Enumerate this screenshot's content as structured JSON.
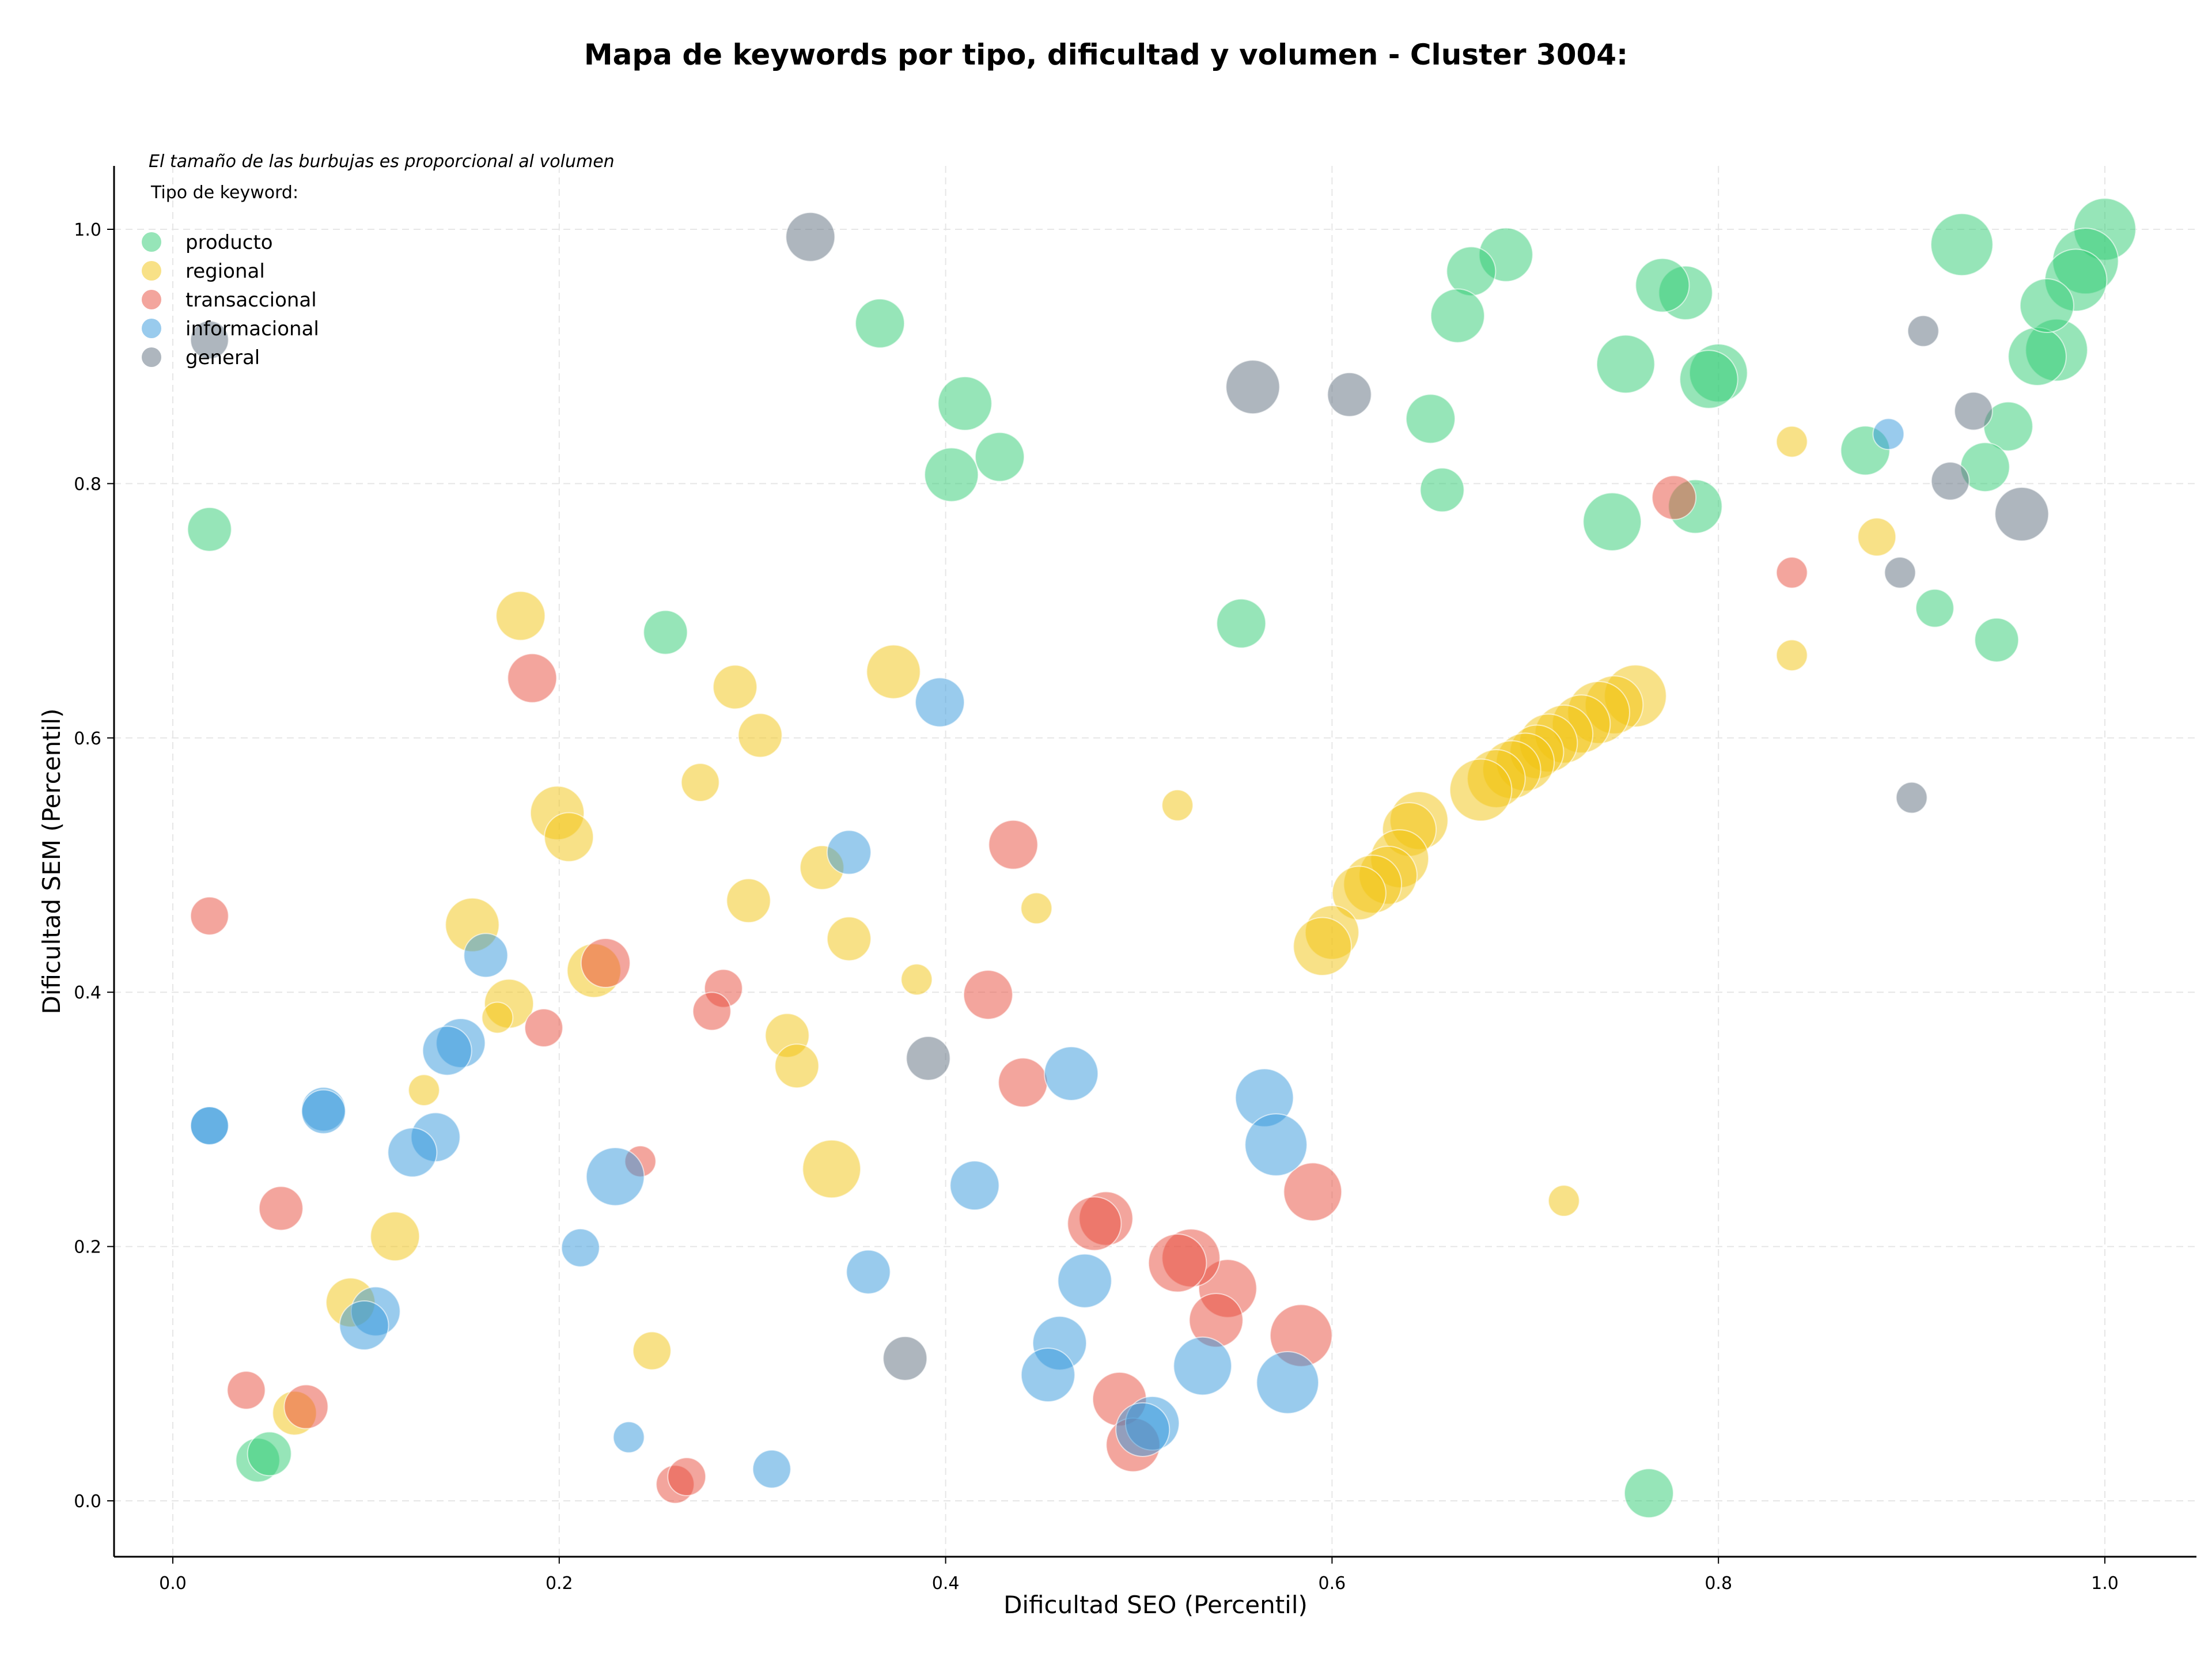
{
  "chart_data": {
    "type": "scatter",
    "title": "Mapa de keywords por tipo, dificultad y volumen - Cluster 3004:",
    "xlabel": "Dificultad SEO (Percentil)",
    "ylabel": "Dificultad SEM (Percentil)",
    "xlim": [
      -0.03,
      1.048
    ],
    "ylim": [
      -0.043,
      1.05
    ],
    "xticks": [
      "0.0",
      "0.2",
      "0.4",
      "0.6",
      "0.8",
      "1.0"
    ],
    "yticks": [
      "0.0",
      "0.2",
      "0.4",
      "0.6",
      "0.8",
      "1.0"
    ],
    "grid": true,
    "annotation": "El tamaño de las burbujas es proporcional al volumen",
    "legend": {
      "title": "Tipo de keyword:",
      "position": "top-left"
    },
    "series": [
      {
        "name": "producto",
        "color": "#2ecc71",
        "points": [
          [
            1.0,
            1.0,
            8
          ],
          [
            0.99,
            0.975,
            9
          ],
          [
            0.985,
            0.96,
            8
          ],
          [
            0.975,
            0.905,
            8
          ],
          [
            0.965,
            0.9,
            7
          ],
          [
            0.97,
            0.94,
            6
          ],
          [
            0.95,
            0.845,
            5
          ],
          [
            0.938,
            0.813,
            5
          ],
          [
            0.926,
            0.988,
            8
          ],
          [
            0.876,
            0.826,
            5
          ],
          [
            0.912,
            0.702,
            3
          ],
          [
            0.944,
            0.677,
            4
          ],
          [
            0.8,
            0.887,
            7
          ],
          [
            0.795,
            0.882,
            7
          ],
          [
            0.788,
            0.782,
            6
          ],
          [
            0.783,
            0.95,
            6
          ],
          [
            0.771,
            0.956,
            6
          ],
          [
            0.752,
            0.894,
            7
          ],
          [
            0.745,
            0.77,
            7
          ],
          [
            0.764,
            0.006,
            5
          ],
          [
            0.69,
            0.98,
            6
          ],
          [
            0.672,
            0.967,
            5
          ],
          [
            0.665,
            0.932,
            6
          ],
          [
            0.651,
            0.851,
            5
          ],
          [
            0.657,
            0.795,
            4
          ],
          [
            0.553,
            0.69,
            5
          ],
          [
            0.41,
            0.863,
            6
          ],
          [
            0.403,
            0.807,
            6
          ],
          [
            0.428,
            0.821,
            5
          ],
          [
            0.366,
            0.926,
            5
          ],
          [
            0.255,
            0.683,
            4
          ],
          [
            0.019,
            0.764,
            4
          ],
          [
            0.044,
            0.032,
            4
          ],
          [
            0.05,
            0.037,
            4
          ]
        ]
      },
      {
        "name": "regional",
        "color": "#f1c40f",
        "points": [
          [
            0.757,
            0.633,
            8
          ],
          [
            0.746,
            0.626,
            7
          ],
          [
            0.738,
            0.62,
            8
          ],
          [
            0.729,
            0.611,
            7
          ],
          [
            0.72,
            0.603,
            7
          ],
          [
            0.712,
            0.596,
            7
          ],
          [
            0.706,
            0.589,
            6
          ],
          [
            0.7,
            0.581,
            7
          ],
          [
            0.693,
            0.575,
            7
          ],
          [
            0.685,
            0.568,
            7
          ],
          [
            0.677,
            0.559,
            8
          ],
          [
            0.645,
            0.535,
            7
          ],
          [
            0.64,
            0.528,
            6
          ],
          [
            0.635,
            0.505,
            7
          ],
          [
            0.629,
            0.492,
            7
          ],
          [
            0.621,
            0.485,
            7
          ],
          [
            0.614,
            0.478,
            6
          ],
          [
            0.6,
            0.447,
            6
          ],
          [
            0.595,
            0.436,
            7
          ],
          [
            0.52,
            0.547,
            2
          ],
          [
            0.447,
            0.466,
            2
          ],
          [
            0.373,
            0.652,
            6
          ],
          [
            0.336,
            0.498,
            4
          ],
          [
            0.35,
            0.442,
            4
          ],
          [
            0.385,
            0.41,
            2
          ],
          [
            0.341,
            0.261,
            7
          ],
          [
            0.318,
            0.366,
            4
          ],
          [
            0.323,
            0.342,
            4
          ],
          [
            0.291,
            0.64,
            4
          ],
          [
            0.304,
            0.602,
            4
          ],
          [
            0.273,
            0.565,
            3
          ],
          [
            0.298,
            0.472,
            4
          ],
          [
            0.18,
            0.696,
            5
          ],
          [
            0.199,
            0.541,
            6
          ],
          [
            0.205,
            0.522,
            5
          ],
          [
            0.155,
            0.453,
            6
          ],
          [
            0.174,
            0.391,
            5
          ],
          [
            0.168,
            0.38,
            2
          ],
          [
            0.218,
            0.417,
            6
          ],
          [
            0.13,
            0.323,
            2
          ],
          [
            0.115,
            0.208,
            5
          ],
          [
            0.092,
            0.156,
            5
          ],
          [
            0.063,
            0.069,
            4
          ],
          [
            0.248,
            0.118,
            3
          ],
          [
            0.72,
            0.236,
            2
          ],
          [
            0.838,
            0.833,
            2
          ],
          [
            0.882,
            0.758,
            3
          ],
          [
            0.838,
            0.665,
            2
          ]
        ]
      },
      {
        "name": "transaccional",
        "color": "#e74c3c",
        "points": [
          [
            0.777,
            0.789,
            4
          ],
          [
            0.59,
            0.243,
            7
          ],
          [
            0.584,
            0.13,
            8
          ],
          [
            0.546,
            0.167,
            7
          ],
          [
            0.54,
            0.142,
            6
          ],
          [
            0.527,
            0.191,
            7
          ],
          [
            0.52,
            0.187,
            7
          ],
          [
            0.483,
            0.222,
            6
          ],
          [
            0.477,
            0.218,
            6
          ],
          [
            0.49,
            0.08,
            6
          ],
          [
            0.497,
            0.044,
            6
          ],
          [
            0.435,
            0.516,
            5
          ],
          [
            0.44,
            0.329,
            5
          ],
          [
            0.422,
            0.398,
            5
          ],
          [
            0.285,
            0.403,
            3
          ],
          [
            0.279,
            0.385,
            3
          ],
          [
            0.224,
            0.423,
            5
          ],
          [
            0.192,
            0.372,
            3
          ],
          [
            0.186,
            0.647,
            5
          ],
          [
            0.242,
            0.267,
            2
          ],
          [
            0.26,
            0.013,
            3
          ],
          [
            0.266,
            0.019,
            3
          ],
          [
            0.019,
            0.46,
            3
          ],
          [
            0.056,
            0.23,
            4
          ],
          [
            0.038,
            0.087,
            3
          ],
          [
            0.069,
            0.074,
            4
          ],
          [
            0.838,
            0.73,
            2
          ]
        ]
      },
      {
        "name": "informacional",
        "color": "#3498db",
        "points": [
          [
            0.888,
            0.839,
            2
          ],
          [
            0.565,
            0.317,
            7
          ],
          [
            0.571,
            0.28,
            8
          ],
          [
            0.577,
            0.093,
            8
          ],
          [
            0.533,
            0.106,
            7
          ],
          [
            0.507,
            0.061,
            6
          ],
          [
            0.502,
            0.056,
            6
          ],
          [
            0.465,
            0.336,
            6
          ],
          [
            0.472,
            0.173,
            6
          ],
          [
            0.459,
            0.124,
            6
          ],
          [
            0.453,
            0.099,
            6
          ],
          [
            0.415,
            0.248,
            5
          ],
          [
            0.397,
            0.628,
            5
          ],
          [
            0.35,
            0.51,
            4
          ],
          [
            0.36,
            0.18,
            4
          ],
          [
            0.31,
            0.025,
            3
          ],
          [
            0.229,
            0.255,
            7
          ],
          [
            0.211,
            0.199,
            3
          ],
          [
            0.236,
            0.05,
            2
          ],
          [
            0.162,
            0.429,
            4
          ],
          [
            0.149,
            0.36,
            5
          ],
          [
            0.142,
            0.354,
            5
          ],
          [
            0.136,
            0.286,
            5
          ],
          [
            0.124,
            0.274,
            5
          ],
          [
            0.105,
            0.149,
            5
          ],
          [
            0.099,
            0.138,
            5
          ],
          [
            0.078,
            0.308,
            4
          ],
          [
            0.078,
            0.306,
            4
          ],
          [
            0.019,
            0.295,
            3
          ],
          [
            0.019,
            0.295,
            3
          ]
        ]
      },
      {
        "name": "general",
        "color": "#5d6d7e",
        "points": [
          [
            0.957,
            0.776,
            6
          ],
          [
            0.932,
            0.857,
            3
          ],
          [
            0.92,
            0.802,
            3
          ],
          [
            0.906,
            0.92,
            2
          ],
          [
            0.894,
            0.73,
            2
          ],
          [
            0.9,
            0.553,
            2
          ],
          [
            0.609,
            0.87,
            4
          ],
          [
            0.559,
            0.876,
            6
          ],
          [
            0.391,
            0.348,
            4
          ],
          [
            0.379,
            0.112,
            4
          ],
          [
            0.33,
            0.994,
            5
          ],
          [
            0.019,
            0.913,
            3
          ]
        ]
      }
    ]
  }
}
